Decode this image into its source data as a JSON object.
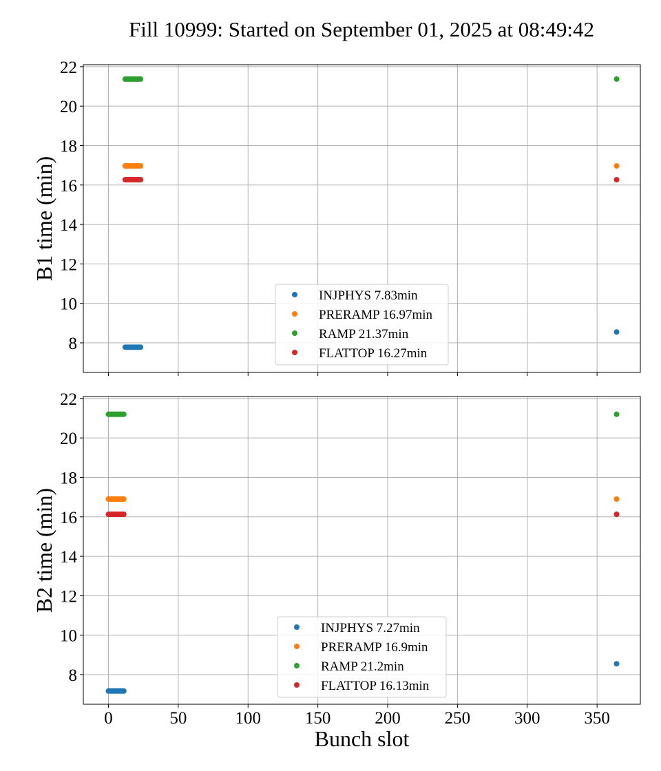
{
  "title": "Fill 10999: Started on September 01, 2025 at 08:49:42",
  "chart_data": [
    {
      "type": "scatter",
      "title": "",
      "xlabel": "",
      "ylabel": "B1 time (min)",
      "xlim": [
        -18,
        381
      ],
      "ylim": [
        6.5,
        22.1
      ],
      "xticks": [
        0,
        50,
        100,
        150,
        200,
        250,
        300,
        350
      ],
      "yticks": [
        8,
        10,
        12,
        14,
        16,
        18,
        20,
        22
      ],
      "show_x_tick_labels": false,
      "grid": true,
      "legend_position": "lower-center",
      "series": [
        {
          "name": "INJPHYS 7.83min",
          "color": "#1f77b4",
          "points": [
            [
              12,
              7.78
            ],
            [
              13,
              7.78
            ],
            [
              14,
              7.78
            ],
            [
              15,
              7.78
            ],
            [
              16,
              7.78
            ],
            [
              17,
              7.78
            ],
            [
              18,
              7.78
            ],
            [
              19,
              7.78
            ],
            [
              20,
              7.78
            ],
            [
              21,
              7.78
            ],
            [
              22,
              7.78
            ],
            [
              23,
              7.78
            ],
            [
              364,
              8.55
            ]
          ]
        },
        {
          "name": "PRERAMP 16.97min",
          "color": "#ff7f0e",
          "points": [
            [
              12,
              16.97
            ],
            [
              13,
              16.97
            ],
            [
              14,
              16.97
            ],
            [
              15,
              16.97
            ],
            [
              16,
              16.97
            ],
            [
              17,
              16.97
            ],
            [
              18,
              16.97
            ],
            [
              19,
              16.97
            ],
            [
              20,
              16.97
            ],
            [
              21,
              16.97
            ],
            [
              22,
              16.97
            ],
            [
              23,
              16.97
            ],
            [
              364,
              16.97
            ]
          ]
        },
        {
          "name": "RAMP 21.37min",
          "color": "#2ca02c",
          "points": [
            [
              12,
              21.37
            ],
            [
              13,
              21.37
            ],
            [
              14,
              21.37
            ],
            [
              15,
              21.37
            ],
            [
              16,
              21.37
            ],
            [
              17,
              21.37
            ],
            [
              18,
              21.37
            ],
            [
              19,
              21.37
            ],
            [
              20,
              21.37
            ],
            [
              21,
              21.37
            ],
            [
              22,
              21.37
            ],
            [
              23,
              21.37
            ],
            [
              364,
              21.37
            ]
          ]
        },
        {
          "name": "FLATTOP 16.27min",
          "color": "#d62728",
          "points": [
            [
              12,
              16.27
            ],
            [
              13,
              16.27
            ],
            [
              14,
              16.27
            ],
            [
              15,
              16.27
            ],
            [
              16,
              16.27
            ],
            [
              17,
              16.27
            ],
            [
              18,
              16.27
            ],
            [
              19,
              16.27
            ],
            [
              20,
              16.27
            ],
            [
              21,
              16.27
            ],
            [
              22,
              16.27
            ],
            [
              23,
              16.27
            ],
            [
              364,
              16.27
            ]
          ]
        }
      ]
    },
    {
      "type": "scatter",
      "title": "",
      "xlabel": "Bunch slot",
      "ylabel": "B2 time (min)",
      "xlim": [
        -18,
        381
      ],
      "ylim": [
        6.5,
        22.1
      ],
      "xticks": [
        0,
        50,
        100,
        150,
        200,
        250,
        300,
        350
      ],
      "yticks": [
        8,
        10,
        12,
        14,
        16,
        18,
        20,
        22
      ],
      "show_x_tick_labels": true,
      "grid": true,
      "legend_position": "lower-center",
      "series": [
        {
          "name": "INJPHYS 7.27min",
          "color": "#1f77b4",
          "points": [
            [
              0,
              7.17
            ],
            [
              1,
              7.17
            ],
            [
              2,
              7.17
            ],
            [
              3,
              7.17
            ],
            [
              4,
              7.17
            ],
            [
              5,
              7.17
            ],
            [
              6,
              7.17
            ],
            [
              7,
              7.17
            ],
            [
              8,
              7.17
            ],
            [
              9,
              7.17
            ],
            [
              10,
              7.17
            ],
            [
              11,
              7.17
            ],
            [
              364,
              8.55
            ]
          ]
        },
        {
          "name": "PRERAMP 16.9min",
          "color": "#ff7f0e",
          "points": [
            [
              0,
              16.9
            ],
            [
              1,
              16.9
            ],
            [
              2,
              16.9
            ],
            [
              3,
              16.9
            ],
            [
              4,
              16.9
            ],
            [
              5,
              16.9
            ],
            [
              6,
              16.9
            ],
            [
              7,
              16.9
            ],
            [
              8,
              16.9
            ],
            [
              9,
              16.9
            ],
            [
              10,
              16.9
            ],
            [
              11,
              16.9
            ],
            [
              364,
              16.9
            ]
          ]
        },
        {
          "name": "RAMP 21.2min",
          "color": "#2ca02c",
          "points": [
            [
              0,
              21.2
            ],
            [
              1,
              21.2
            ],
            [
              2,
              21.2
            ],
            [
              3,
              21.2
            ],
            [
              4,
              21.2
            ],
            [
              5,
              21.2
            ],
            [
              6,
              21.2
            ],
            [
              7,
              21.2
            ],
            [
              8,
              21.2
            ],
            [
              9,
              21.2
            ],
            [
              10,
              21.2
            ],
            [
              11,
              21.2
            ],
            [
              364,
              21.2
            ]
          ]
        },
        {
          "name": "FLATTOP 16.13min",
          "color": "#d62728",
          "points": [
            [
              0,
              16.13
            ],
            [
              1,
              16.13
            ],
            [
              2,
              16.13
            ],
            [
              3,
              16.13
            ],
            [
              4,
              16.13
            ],
            [
              5,
              16.13
            ],
            [
              6,
              16.13
            ],
            [
              7,
              16.13
            ],
            [
              8,
              16.13
            ],
            [
              9,
              16.13
            ],
            [
              10,
              16.13
            ],
            [
              11,
              16.13
            ],
            [
              364,
              16.13
            ]
          ]
        }
      ]
    }
  ]
}
